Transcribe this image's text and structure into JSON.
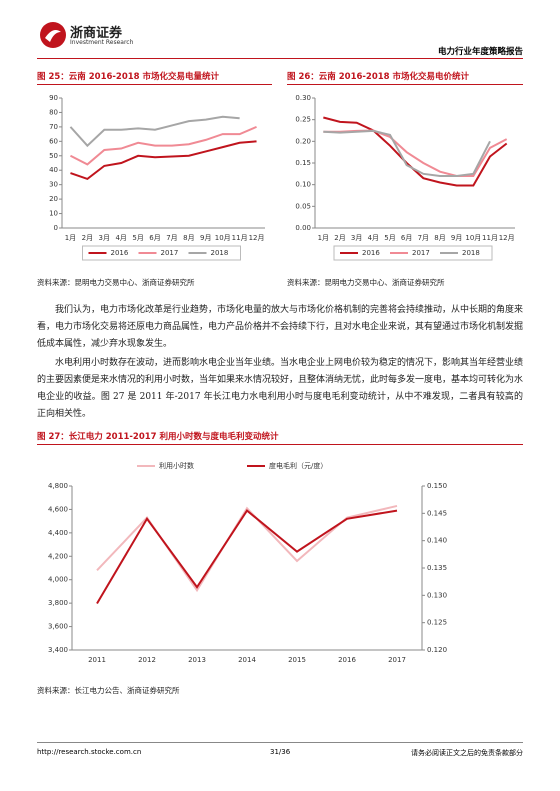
{
  "header": {
    "logo": "浙商证券",
    "logo_sub": "Investment Research",
    "report": "电力行业年度策略报告"
  },
  "chart_data": [
    {
      "type": "line",
      "title": "图 25：云南 2016-2018 市场化交易电量统计",
      "categories": [
        "1月",
        "2月",
        "3月",
        "4月",
        "5月",
        "6月",
        "7月",
        "8月",
        "9月",
        "10月",
        "11月",
        "12月"
      ],
      "series": [
        {
          "name": "2016",
          "color": "#c0141d",
          "values": [
            38,
            34,
            43,
            45,
            50,
            49,
            49.5,
            50,
            53,
            56,
            59,
            60
          ]
        },
        {
          "name": "2017",
          "color": "#f08a94",
          "values": [
            50,
            44,
            54,
            55,
            59,
            57,
            57,
            58,
            61,
            65,
            65,
            70
          ]
        },
        {
          "name": "2018",
          "color": "#a6a6a6",
          "values": [
            70,
            57,
            68,
            68,
            69,
            68,
            71,
            74,
            75,
            77,
            76,
            null
          ]
        }
      ],
      "ylim": [
        0,
        90
      ],
      "yticks": [
        0,
        10,
        20,
        30,
        40,
        50,
        60,
        70,
        80,
        90
      ],
      "legend": "bottom",
      "source": "资料来源：昆明电力交易中心、浙商证券研究所"
    },
    {
      "type": "line",
      "title": "图 26：云南 2016-2018 市场化交易电价统计",
      "categories": [
        "1月",
        "2月",
        "3月",
        "4月",
        "5月",
        "6月",
        "7月",
        "8月",
        "9月",
        "10月",
        "11月",
        "12月"
      ],
      "series": [
        {
          "name": "2016",
          "color": "#c0141d",
          "values": [
            0.255,
            0.245,
            0.243,
            0.225,
            0.19,
            0.15,
            0.115,
            0.105,
            0.098,
            0.098,
            0.165,
            0.195
          ]
        },
        {
          "name": "2017",
          "color": "#f08a94",
          "values": [
            0.222,
            0.222,
            0.224,
            0.225,
            0.21,
            0.175,
            0.15,
            0.13,
            0.12,
            0.12,
            0.185,
            0.205
          ]
        },
        {
          "name": "2018",
          "color": "#a6a6a6",
          "values": [
            0.222,
            0.22,
            0.222,
            0.224,
            0.215,
            0.145,
            0.125,
            0.12,
            0.12,
            0.125,
            0.2,
            null
          ]
        }
      ],
      "ylim": [
        0,
        0.3
      ],
      "yticks": [
        {
          "value": 0,
          "label": "0.00"
        },
        {
          "value": 0.05,
          "label": "0.05"
        },
        {
          "value": 0.1,
          "label": "0.10"
        },
        {
          "value": 0.15,
          "label": "0.15"
        },
        {
          "value": 0.2,
          "label": "0.20"
        },
        {
          "value": 0.25,
          "label": "0.25"
        },
        {
          "value": 0.3,
          "label": "0.30"
        }
      ],
      "legend": "bottom",
      "source": "资料来源：昆明电力交易中心、浙商证券研究所"
    },
    {
      "type": "line",
      "title": "图 27：长江电力 2011-2017 利用小时数与度电毛利变动统计",
      "categories": [
        "2011",
        "2012",
        "2013",
        "2014",
        "2015",
        "2016",
        "2017"
      ],
      "series": [
        {
          "name": "利用小时数",
          "color": "#f2b8bc",
          "values": [
            4080,
            4530,
            3910,
            4610,
            4160,
            4530,
            4630
          ]
        },
        {
          "name": "度电毛利（元/度）",
          "color": "#c0141d",
          "axis": "y2",
          "values": [
            0.1285,
            0.144,
            0.1315,
            0.1455,
            0.138,
            0.144,
            0.1455
          ]
        }
      ],
      "ylim": [
        3400,
        4800
      ],
      "yticks": [
        {
          "value": 3400,
          "label": "3,400"
        },
        {
          "value": 3600,
          "label": "3,600"
        },
        {
          "value": 3800,
          "label": "3,800"
        },
        {
          "value": 4000,
          "label": "4,000"
        },
        {
          "value": 4200,
          "label": "4,200"
        },
        {
          "value": 4400,
          "label": "4,400"
        },
        {
          "value": 4600,
          "label": "4,600"
        },
        {
          "value": 4800,
          "label": "4,800"
        }
      ],
      "y2lim": [
        0.12,
        0.15
      ],
      "y2ticks": [
        {
          "value": 0.12,
          "label": "0.120"
        },
        {
          "value": 0.125,
          "label": "0.125"
        },
        {
          "value": 0.13,
          "label": "0.130"
        },
        {
          "value": 0.135,
          "label": "0.135"
        },
        {
          "value": 0.14,
          "label": "0.140"
        },
        {
          "value": 0.145,
          "label": "0.145"
        },
        {
          "value": 0.15,
          "label": "0.150"
        }
      ],
      "legend": "top",
      "source": "资料来源：长江电力公告、浙商证券研究所"
    }
  ],
  "paragraphs": [
    "我们认为，电力市场化改革是行业趋势，市场化电量的放大与市场化价格机制的完善将会持续推动，从中长期的角度来看，电力市场化交易将还原电力商品属性，电力产品价格并不会持续下行，且对水电企业来说，其有望通过市场化机制发掘低成本属性，减少弃水现象发生。",
    "水电利用小时数存在波动，进而影响水电企业当年业绩。当水电企业上网电价较为稳定的情况下，影响其当年经营业绩的主要因素便是来水情况的利用小时数，当年如果来水情况较好，且整体消纳无忧，此时每多发一度电，基本均可转化为水电企业的收益。图 27 是 2011 年-2017 年长江电力水电利用小时与度电毛利变动统计，从中不难发现，二者具有较高的正向相关性。"
  ],
  "footer": {
    "url": "http://research.stocke.com.cn",
    "page": "31/36",
    "disclaimer": "请务必阅读正文之后的免责条款部分"
  }
}
